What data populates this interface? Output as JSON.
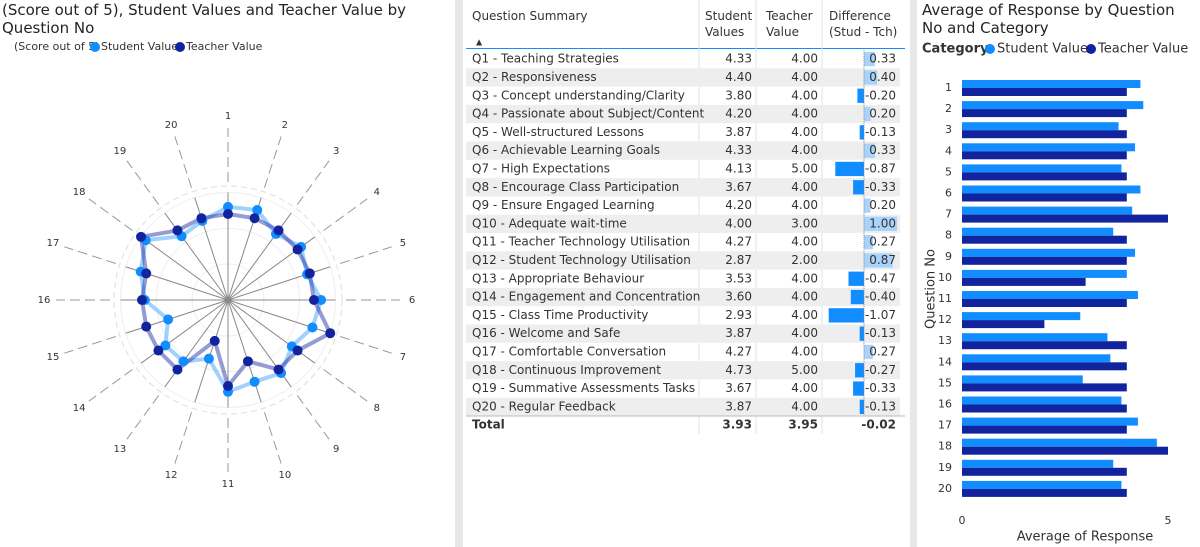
{
  "chart_data": [
    {
      "type": "radar",
      "title": "(Score out of 5), Student Values and Teacher Value by Question No",
      "legend_title": "(Score out of 5)",
      "categories": [
        "1",
        "2",
        "3",
        "4",
        "5",
        "6",
        "7",
        "8",
        "9",
        "10",
        "11",
        "12",
        "13",
        "14",
        "15",
        "16",
        "17",
        "18",
        "19",
        "20"
      ],
      "rlim": [
        0,
        5
      ],
      "series": [
        {
          "name": "Student Values",
          "color": "#118DFF",
          "values": [
            4.33,
            4.4,
            3.8,
            4.2,
            3.87,
            4.33,
            4.13,
            3.67,
            4.2,
            4.0,
            4.27,
            2.87,
            3.53,
            3.6,
            2.93,
            3.87,
            4.27,
            4.73,
            3.67,
            3.87
          ]
        },
        {
          "name": "Teacher Value",
          "color": "#12239E",
          "values": [
            4,
            4,
            4,
            4,
            4,
            4,
            5,
            4,
            4,
            3,
            4,
            2,
            4,
            4,
            4,
            4,
            4,
            5,
            4,
            4
          ]
        }
      ]
    },
    {
      "type": "bar",
      "orientation": "horizontal",
      "title": "Average of Response by Question No and Category",
      "legend_title": "Category",
      "categories": [
        "1",
        "2",
        "3",
        "4",
        "5",
        "6",
        "7",
        "8",
        "9",
        "10",
        "11",
        "12",
        "13",
        "14",
        "15",
        "16",
        "17",
        "18",
        "19",
        "20"
      ],
      "xlabel": "Average of Response",
      "ylabel": "Question No",
      "xlim": [
        0,
        5
      ],
      "xticks": [
        0,
        5
      ],
      "series": [
        {
          "name": "Student Values",
          "color": "#118DFF",
          "values": [
            4.33,
            4.4,
            3.8,
            4.2,
            3.87,
            4.33,
            4.13,
            3.67,
            4.2,
            4.0,
            4.27,
            2.87,
            3.53,
            3.6,
            2.93,
            3.87,
            4.27,
            4.73,
            3.67,
            3.87
          ]
        },
        {
          "name": "Teacher Value",
          "color": "#12239E",
          "values": [
            4,
            4,
            4,
            4,
            4,
            4,
            5,
            4,
            4,
            3,
            4,
            2,
            4,
            4,
            4,
            4,
            4,
            5,
            4,
            4
          ]
        }
      ]
    }
  ],
  "table": {
    "headers": [
      "Question Summary",
      "Student Values",
      "Teacher Value",
      "Difference (Stud - Tch)"
    ],
    "rows": [
      [
        "Q1 - Teaching Strategies",
        "4.33",
        "4.00",
        "0.33"
      ],
      [
        "Q2 - Responsiveness",
        "4.40",
        "4.00",
        "0.40"
      ],
      [
        "Q3 - Concept understanding/Clarity",
        "3.80",
        "4.00",
        "-0.20"
      ],
      [
        "Q4 - Passionate about Subject/Content",
        "4.20",
        "4.00",
        "0.20"
      ],
      [
        "Q5 - Well-structured Lessons",
        "3.87",
        "4.00",
        "-0.13"
      ],
      [
        "Q6 - Achievable Learning Goals",
        "4.33",
        "4.00",
        "0.33"
      ],
      [
        "Q7 - High Expectations",
        "4.13",
        "5.00",
        "-0.87"
      ],
      [
        "Q8 - Encourage Class Participation",
        "3.67",
        "4.00",
        "-0.33"
      ],
      [
        "Q9 - Ensure Engaged Learning",
        "4.20",
        "4.00",
        "0.20"
      ],
      [
        "Q10 - Adequate wait-time",
        "4.00",
        "3.00",
        "1.00"
      ],
      [
        "Q11 - Teacher Technology Utilisation",
        "4.27",
        "4.00",
        "0.27"
      ],
      [
        "Q12 - Student Technology Utilisation",
        "2.87",
        "2.00",
        "0.87"
      ],
      [
        "Q13 - Appropriate Behaviour",
        "3.53",
        "4.00",
        "-0.47"
      ],
      [
        "Q14 - Engagement and Concentration",
        "3.60",
        "4.00",
        "-0.40"
      ],
      [
        "Q15 - Class Time Productivity",
        "2.93",
        "4.00",
        "-1.07"
      ],
      [
        "Q16 - Welcome and Safe",
        "3.87",
        "4.00",
        "-0.13"
      ],
      [
        "Q17 - Comfortable Conversation",
        "4.27",
        "4.00",
        "0.27"
      ],
      [
        "Q18 - Continuous Improvement",
        "4.73",
        "5.00",
        "-0.27"
      ],
      [
        "Q19 - Summative Assessments Tasks",
        "3.67",
        "4.00",
        "-0.33"
      ],
      [
        "Q20 - Regular Feedback",
        "3.87",
        "4.00",
        "-0.13"
      ]
    ],
    "total": [
      "Total",
      "3.93",
      "3.95",
      "-0.02"
    ]
  }
}
